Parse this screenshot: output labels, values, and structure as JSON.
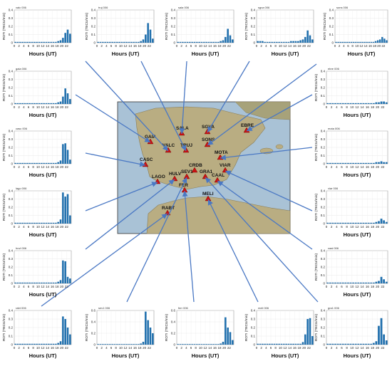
{
  "figure": {
    "xlabel": "Hours (UT)",
    "ylabel": "ROTI (TECU/min)",
    "yticks": [
      "0",
      "0.1",
      "0.2",
      "0.3",
      "0.4"
    ],
    "xticks": [
      "0",
      "2",
      "4",
      "6",
      "8",
      "10",
      "12",
      "14",
      "16",
      "18",
      "20",
      "22"
    ],
    "colors": {
      "bar": "#1f6fad",
      "arrow": "#4a78c4",
      "station": "#cc1111",
      "sea": "#a9c2d6",
      "land": "#b9ad82"
    }
  },
  "map": {
    "stations": [
      {
        "name": "GAIA"
      },
      {
        "name": "SALA"
      },
      {
        "name": "SGVA"
      },
      {
        "name": "VALC"
      },
      {
        "name": "TRUJ"
      },
      {
        "name": "SONS"
      },
      {
        "name": "EBRE"
      },
      {
        "name": "CASC"
      },
      {
        "name": "MOTA"
      },
      {
        "name": "CRDB"
      },
      {
        "name": "VIAR"
      },
      {
        "name": "HULV"
      },
      {
        "name": "SEV1"
      },
      {
        "name": "GRA1"
      },
      {
        "name": "CAAL"
      },
      {
        "name": "LAGO"
      },
      {
        "name": "FER"
      },
      {
        "name": "MELI"
      },
      {
        "name": "RABT"
      }
    ]
  },
  "chart_data": [
    {
      "type": "bar",
      "title": "valc 006",
      "ylim": [
        0,
        0.4
      ],
      "xlim": [
        0,
        24
      ],
      "values": [
        0.01,
        0.01,
        0.01,
        0.01,
        0.01,
        0.01,
        0.01,
        0.01,
        0.01,
        0.01,
        0.01,
        0.01,
        0.01,
        0.01,
        0.01,
        0.01,
        0.01,
        0.01,
        0.02,
        0.03,
        0.06,
        0.12,
        0.16,
        0.11
      ]
    },
    {
      "type": "bar",
      "title": "truj 006",
      "ylim": [
        0,
        0.4
      ],
      "xlim": [
        0,
        24
      ],
      "values": [
        0.01,
        0.01,
        0.01,
        0.01,
        0.01,
        0.01,
        0.01,
        0.01,
        0.01,
        0.01,
        0.01,
        0.01,
        0.01,
        0.01,
        0.01,
        0.01,
        0.01,
        0.01,
        0.02,
        0.04,
        0.1,
        0.24,
        0.16,
        0.05
      ]
    },
    {
      "type": "bar",
      "title": "sala 006",
      "ylim": [
        0,
        0.4
      ],
      "xlim": [
        0,
        24
      ],
      "values": [
        0.01,
        0.01,
        0.01,
        0.01,
        0.01,
        0.01,
        0.01,
        0.01,
        0.01,
        0.01,
        0.01,
        0.01,
        0.01,
        0.01,
        0.01,
        0.01,
        0.01,
        0.01,
        0.02,
        0.03,
        0.07,
        0.17,
        0.09,
        0.04
      ]
    },
    {
      "type": "bar",
      "title": "sgva 006",
      "ylim": [
        0,
        0.4
      ],
      "xlim": [
        0,
        24
      ],
      "values": [
        0.02,
        0.02,
        0.02,
        0.01,
        0.01,
        0.01,
        0.01,
        0.01,
        0.01,
        0.01,
        0.01,
        0.01,
        0.01,
        0.01,
        0.02,
        0.02,
        0.02,
        0.02,
        0.03,
        0.04,
        0.07,
        0.15,
        0.09,
        0.04
      ]
    },
    {
      "type": "bar",
      "title": "sons 006",
      "ylim": [
        0,
        0.4
      ],
      "xlim": [
        0,
        24
      ],
      "values": [
        0.01,
        0.01,
        0.01,
        0.01,
        0.01,
        0.01,
        0.01,
        0.01,
        0.01,
        0.01,
        0.01,
        0.01,
        0.01,
        0.01,
        0.01,
        0.01,
        0.01,
        0.01,
        0.02,
        0.03,
        0.04,
        0.07,
        0.05,
        0.03
      ]
    },
    {
      "type": "bar",
      "title": "gaia 006",
      "ylim": [
        0,
        0.4
      ],
      "xlim": [
        0,
        24
      ],
      "values": [
        0.01,
        0.01,
        0.01,
        0.01,
        0.01,
        0.01,
        0.01,
        0.01,
        0.01,
        0.01,
        0.01,
        0.01,
        0.01,
        0.01,
        0.01,
        0.01,
        0.01,
        0.01,
        0.02,
        0.03,
        0.09,
        0.19,
        0.13,
        0.06
      ]
    },
    {
      "type": "bar",
      "title": "ebre 006",
      "ylim": [
        0,
        0.4
      ],
      "xlim": [
        0,
        24
      ],
      "values": [
        0.01,
        0.01,
        0.01,
        0.01,
        0.01,
        0.01,
        0.01,
        0.01,
        0.01,
        0.01,
        0.01,
        0.01,
        0.01,
        0.01,
        0.01,
        0.01,
        0.01,
        0.01,
        0.01,
        0.02,
        0.02,
        0.03,
        0.03,
        0.02
      ]
    },
    {
      "type": "bar",
      "title": "casc 006",
      "ylim": [
        0,
        0.4
      ],
      "xlim": [
        0,
        24
      ],
      "values": [
        0.01,
        0.01,
        0.01,
        0.01,
        0.01,
        0.01,
        0.01,
        0.01,
        0.01,
        0.01,
        0.01,
        0.01,
        0.01,
        0.01,
        0.01,
        0.01,
        0.01,
        0.01,
        0.02,
        0.04,
        0.24,
        0.25,
        0.17,
        0.05
      ]
    },
    {
      "type": "bar",
      "title": "mota 006",
      "ylim": [
        0,
        0.4
      ],
      "xlim": [
        0,
        24
      ],
      "values": [
        0.01,
        0.01,
        0.01,
        0.01,
        0.01,
        0.01,
        0.01,
        0.01,
        0.01,
        0.01,
        0.01,
        0.01,
        0.01,
        0.01,
        0.01,
        0.01,
        0.01,
        0.01,
        0.01,
        0.02,
        0.02,
        0.03,
        0.02,
        0.02
      ]
    },
    {
      "type": "bar",
      "title": "lago 006",
      "ylim": [
        0,
        0.4
      ],
      "xlim": [
        0,
        24
      ],
      "values": [
        0.01,
        0.01,
        0.01,
        0.01,
        0.01,
        0.01,
        0.01,
        0.01,
        0.01,
        0.01,
        0.01,
        0.01,
        0.01,
        0.01,
        0.01,
        0.01,
        0.01,
        0.01,
        0.02,
        0.05,
        0.38,
        0.33,
        0.36,
        0.1
      ]
    },
    {
      "type": "bar",
      "title": "viar 006",
      "ylim": [
        0,
        0.4
      ],
      "xlim": [
        0,
        24
      ],
      "values": [
        0.01,
        0.01,
        0.01,
        0.01,
        0.01,
        0.01,
        0.01,
        0.01,
        0.01,
        0.01,
        0.01,
        0.01,
        0.01,
        0.01,
        0.01,
        0.01,
        0.01,
        0.01,
        0.01,
        0.02,
        0.03,
        0.06,
        0.04,
        0.02
      ]
    },
    {
      "type": "bar",
      "title": "huvl 006",
      "ylim": [
        0,
        0.4
      ],
      "xlim": [
        0,
        24
      ],
      "values": [
        0.01,
        0.01,
        0.01,
        0.01,
        0.01,
        0.01,
        0.01,
        0.01,
        0.01,
        0.01,
        0.01,
        0.01,
        0.01,
        0.01,
        0.01,
        0.01,
        0.01,
        0.01,
        0.02,
        0.04,
        0.28,
        0.27,
        0.08,
        0.06
      ]
    },
    {
      "type": "bar",
      "title": "caal 006",
      "ylim": [
        0,
        0.4
      ],
      "xlim": [
        0,
        24
      ],
      "values": [
        0.01,
        0.01,
        0.01,
        0.01,
        0.01,
        0.01,
        0.01,
        0.01,
        0.01,
        0.01,
        0.01,
        0.01,
        0.01,
        0.01,
        0.01,
        0.01,
        0.01,
        0.01,
        0.01,
        0.02,
        0.03,
        0.08,
        0.05,
        0.02
      ]
    },
    {
      "type": "bar",
      "title": "rabt 006",
      "ylim": [
        0,
        0.4
      ],
      "xlim": [
        0,
        24
      ],
      "values": [
        0.01,
        0.01,
        0.01,
        0.01,
        0.01,
        0.01,
        0.01,
        0.01,
        0.01,
        0.01,
        0.01,
        0.01,
        0.01,
        0.01,
        0.01,
        0.01,
        0.01,
        0.01,
        0.02,
        0.04,
        0.33,
        0.3,
        0.2,
        0.12
      ]
    },
    {
      "type": "bar",
      "title": "sev1 006",
      "ylim": [
        0,
        0.6
      ],
      "xlim": [
        0,
        24
      ],
      "values": [
        0.01,
        0.01,
        0.01,
        0.01,
        0.01,
        0.01,
        0.01,
        0.01,
        0.01,
        0.01,
        0.01,
        0.01,
        0.01,
        0.01,
        0.01,
        0.01,
        0.01,
        0.01,
        0.02,
        0.05,
        0.58,
        0.43,
        0.3,
        0.2
      ]
    },
    {
      "type": "bar",
      "title": "ferr 006",
      "ylim": [
        0,
        0.6
      ],
      "xlim": [
        0,
        24
      ],
      "values": [
        0.01,
        0.01,
        0.01,
        0.01,
        0.01,
        0.01,
        0.01,
        0.01,
        0.01,
        0.01,
        0.01,
        0.01,
        0.01,
        0.01,
        0.01,
        0.01,
        0.01,
        0.01,
        0.02,
        0.05,
        0.48,
        0.3,
        0.22,
        0.08
      ]
    },
    {
      "type": "bar",
      "title": "meli 006",
      "ylim": [
        0,
        0.4
      ],
      "xlim": [
        0,
        24
      ],
      "values": [
        0.01,
        0.01,
        0.01,
        0.01,
        0.01,
        0.01,
        0.01,
        0.01,
        0.01,
        0.01,
        0.01,
        0.01,
        0.01,
        0.01,
        0.01,
        0.01,
        0.01,
        0.01,
        0.01,
        0.03,
        0.12,
        0.3,
        0.31,
        0.1
      ]
    },
    {
      "type": "bar",
      "title": "gra1 006",
      "ylim": [
        0,
        0.4
      ],
      "xlim": [
        0,
        24
      ],
      "values": [
        0.01,
        0.01,
        0.01,
        0.01,
        0.01,
        0.01,
        0.01,
        0.01,
        0.01,
        0.01,
        0.01,
        0.01,
        0.01,
        0.01,
        0.01,
        0.01,
        0.01,
        0.01,
        0.02,
        0.04,
        0.22,
        0.31,
        0.12,
        0.05
      ]
    }
  ]
}
